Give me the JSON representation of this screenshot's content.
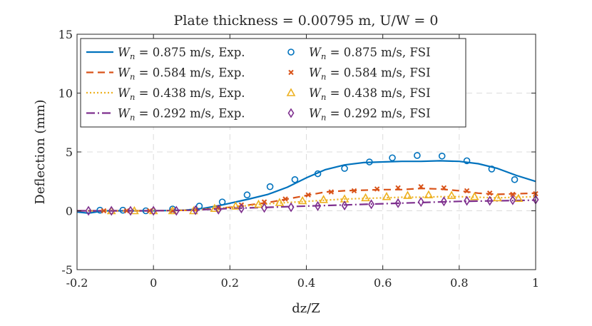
{
  "chart_data": {
    "type": "line",
    "title": "Plate thickness = 0.00795 m, U/W = 0",
    "xlabel": "dz/Z",
    "ylabel": "Deflection (mm)",
    "xlim": [
      -0.2,
      1.0
    ],
    "ylim": [
      -5,
      15
    ],
    "xticks": [
      -0.2,
      0,
      0.2,
      0.4,
      0.6,
      0.8,
      1
    ],
    "xtick_labels": [
      "-0.2",
      "0",
      "0.2",
      "0.4",
      "0.6",
      "0.8",
      "1"
    ],
    "yticks": [
      -5,
      0,
      5,
      10,
      15
    ],
    "ytick_labels": [
      "-5",
      "0",
      "5",
      "10",
      "15"
    ],
    "grid": true,
    "legend_position": "top-left",
    "series": [
      {
        "name": "W_n = 0.875 m/s, Exp.",
        "label_prefix": "W",
        "label_sub": "n",
        "label_rest": " = 0.875 m/s, Exp.",
        "kind": "line",
        "style": "solid",
        "color": "#0072BD",
        "x": [
          -0.2,
          -0.17,
          -0.13,
          -0.08,
          0.0,
          0.08,
          0.13,
          0.18,
          0.25,
          0.3,
          0.35,
          0.4,
          0.45,
          0.5,
          0.55,
          0.6,
          0.65,
          0.7,
          0.75,
          0.8,
          0.85,
          0.9,
          0.95,
          1.0
        ],
        "y": [
          -0.1,
          -0.2,
          0.0,
          0.0,
          0.0,
          0.05,
          0.2,
          0.5,
          1.0,
          1.4,
          2.0,
          2.8,
          3.5,
          3.9,
          4.1,
          4.15,
          4.2,
          4.2,
          4.25,
          4.2,
          4.0,
          3.6,
          3.0,
          2.5
        ]
      },
      {
        "name": "W_n = 0.584 m/s, Exp.",
        "label_prefix": "W",
        "label_sub": "n",
        "label_rest": " = 0.584 m/s, Exp.",
        "kind": "line",
        "style": "dashed",
        "color": "#D95319",
        "x": [
          -0.2,
          -0.1,
          0.0,
          0.1,
          0.2,
          0.3,
          0.35,
          0.4,
          0.45,
          0.5,
          0.55,
          0.6,
          0.65,
          0.7,
          0.75,
          0.8,
          0.85,
          0.9,
          0.95,
          1.0
        ],
        "y": [
          0.0,
          0.0,
          0.0,
          0.05,
          0.3,
          0.7,
          1.0,
          1.3,
          1.6,
          1.7,
          1.75,
          1.8,
          1.8,
          1.9,
          1.85,
          1.7,
          1.5,
          1.4,
          1.45,
          1.5
        ]
      },
      {
        "name": "W_n = 0.438 m/s, Exp.",
        "label_prefix": "W",
        "label_sub": "n",
        "label_rest": " = 0.438 m/s, Exp.",
        "kind": "line",
        "style": "dotted",
        "color": "#EDB120",
        "x": [
          -0.2,
          -0.1,
          0.0,
          0.1,
          0.2,
          0.3,
          0.4,
          0.5,
          0.55,
          0.6,
          0.65,
          0.7,
          0.75,
          0.8,
          0.85,
          0.9,
          0.95,
          1.0
        ],
        "y": [
          0.0,
          0.0,
          0.0,
          0.05,
          0.3,
          0.6,
          0.8,
          1.0,
          1.05,
          1.1,
          1.15,
          1.15,
          1.2,
          1.2,
          1.15,
          1.1,
          1.15,
          1.2
        ]
      },
      {
        "name": "W_n = 0.292 m/s, Exp.",
        "label_prefix": "W",
        "label_sub": "n",
        "label_rest": " = 0.292 m/s, Exp.",
        "kind": "line",
        "style": "dashdot",
        "color": "#7E2F8E",
        "x": [
          -0.2,
          -0.1,
          0.0,
          0.1,
          0.2,
          0.3,
          0.4,
          0.5,
          0.6,
          0.7,
          0.8,
          0.9,
          1.0
        ],
        "y": [
          0.0,
          0.0,
          0.0,
          0.05,
          0.2,
          0.3,
          0.4,
          0.5,
          0.6,
          0.7,
          0.8,
          0.85,
          0.9
        ]
      },
      {
        "name": "W_n = 0.875 m/s, FSI",
        "label_prefix": "W",
        "label_sub": "n",
        "label_rest": " = 0.875 m/s, FSI",
        "kind": "marker",
        "marker": "circle",
        "color": "#0072BD",
        "x": [
          -0.14,
          -0.08,
          -0.02,
          0.05,
          0.12,
          0.18,
          0.245,
          0.305,
          0.37,
          0.43,
          0.5,
          0.565,
          0.625,
          0.69,
          0.755,
          0.82,
          0.885,
          0.945
        ],
        "y": [
          0.05,
          0.05,
          0.0,
          0.15,
          0.4,
          0.75,
          1.35,
          2.05,
          2.65,
          3.15,
          3.6,
          4.15,
          4.5,
          4.7,
          4.65,
          4.25,
          3.55,
          2.65
        ]
      },
      {
        "name": "W_n = 0.584 m/s, FSI",
        "label_prefix": "W",
        "label_sub": "n",
        "label_rest": " = 0.584 m/s, FSI",
        "kind": "marker",
        "marker": "cross",
        "color": "#D95319",
        "x": [
          -0.13,
          -0.07,
          -0.01,
          0.05,
          0.11,
          0.17,
          0.23,
          0.29,
          0.345,
          0.405,
          0.465,
          0.525,
          0.585,
          0.64,
          0.7,
          0.76,
          0.82,
          0.88,
          0.94,
          1.0
        ],
        "y": [
          0.0,
          0.0,
          0.0,
          0.0,
          0.1,
          0.25,
          0.5,
          0.75,
          1.0,
          1.35,
          1.6,
          1.7,
          1.85,
          1.95,
          2.05,
          1.95,
          1.7,
          1.5,
          1.4,
          1.45
        ]
      },
      {
        "name": "W_n = 0.438 m/s, FSI",
        "label_prefix": "W",
        "label_sub": "n",
        "label_rest": " = 0.438 m/s, FSI",
        "kind": "marker",
        "marker": "triangle",
        "color": "#EDB120",
        "x": [
          -0.11,
          -0.05,
          0.0,
          0.05,
          0.105,
          0.16,
          0.215,
          0.275,
          0.33,
          0.39,
          0.445,
          0.5,
          0.555,
          0.61,
          0.665,
          0.72,
          0.78,
          0.84,
          0.9,
          0.955
        ],
        "y": [
          0.0,
          0.0,
          0.0,
          0.0,
          0.0,
          0.2,
          0.4,
          0.55,
          0.7,
          0.85,
          0.95,
          1.0,
          1.1,
          1.2,
          1.3,
          1.35,
          1.3,
          1.2,
          1.1,
          1.05
        ]
      },
      {
        "name": "W_n = 0.292 m/s, FSI",
        "label_prefix": "W",
        "label_sub": "n",
        "label_rest": " = 0.292 m/s, FSI",
        "kind": "marker",
        "marker": "diamond",
        "color": "#7E2F8E",
        "x": [
          -0.17,
          -0.11,
          -0.06,
          0.0,
          0.06,
          0.11,
          0.17,
          0.23,
          0.29,
          0.36,
          0.43,
          0.5,
          0.57,
          0.64,
          0.7,
          0.76,
          0.82,
          0.88,
          0.94,
          1.0
        ],
        "y": [
          0.0,
          0.0,
          0.0,
          0.0,
          0.0,
          0.05,
          0.1,
          0.2,
          0.25,
          0.3,
          0.4,
          0.45,
          0.55,
          0.65,
          0.75,
          0.8,
          0.85,
          0.85,
          0.9,
          0.95
        ]
      }
    ]
  }
}
